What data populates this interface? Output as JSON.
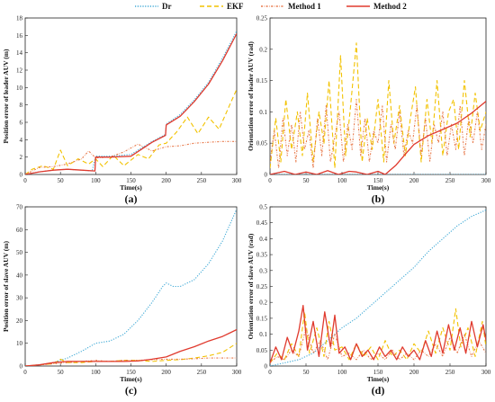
{
  "legend": [
    {
      "name": "Dr",
      "color": "#3fa9d6",
      "dash": "1.2,1.6"
    },
    {
      "name": "EKF",
      "color": "#f2c200",
      "dash": "5,3"
    },
    {
      "name": "Method 1",
      "color": "#e8794a",
      "dash": "2,1.5,0.6,1.5"
    },
    {
      "name": "Method 2",
      "color": "#e03a2e",
      "dash": ""
    }
  ],
  "chart_data": [
    {
      "panel": "(a)",
      "type": "line",
      "xlabel": "Time(s)",
      "ylabel": "Position error of leader AUV (m)",
      "xlim": [
        0,
        300
      ],
      "ylim": [
        0,
        18
      ],
      "xticks": [
        0,
        50,
        100,
        150,
        200,
        250,
        300
      ],
      "yticks": [
        0,
        2,
        4,
        6,
        8,
        10,
        12,
        14,
        16,
        18
      ],
      "grid": false,
      "series": [
        {
          "name": "Dr",
          "x": [
            0,
            20,
            40,
            60,
            80,
            95,
            100,
            120,
            150,
            180,
            199,
            200,
            220,
            240,
            260,
            280,
            300
          ],
          "y": [
            0,
            0.3,
            0.5,
            0.6,
            0.5,
            0.4,
            2.1,
            2.1,
            2.3,
            3.8,
            4.6,
            5.8,
            6.9,
            8.6,
            10.6,
            13.4,
            16.5
          ]
        },
        {
          "name": "EKF",
          "x": [
            0,
            10,
            25,
            40,
            50,
            60,
            75,
            90,
            100,
            110,
            125,
            140,
            160,
            175,
            190,
            200,
            215,
            230,
            245,
            260,
            275,
            290,
            300
          ],
          "y": [
            0,
            0.6,
            1.0,
            0.6,
            2.8,
            1.0,
            1.8,
            1.2,
            1.8,
            0.9,
            2.2,
            1.0,
            2.3,
            1.8,
            3.4,
            3.6,
            4.9,
            6.6,
            4.7,
            6.6,
            5.2,
            8.0,
            9.8
          ]
        },
        {
          "name": "Method 1",
          "x": [
            0,
            20,
            40,
            60,
            80,
            90,
            100,
            120,
            140,
            160,
            180,
            200,
            220,
            240,
            260,
            280,
            300
          ],
          "y": [
            0,
            0.8,
            0.9,
            1.2,
            1.8,
            2.7,
            1.9,
            2.0,
            2.6,
            3.5,
            2.7,
            3.2,
            3.3,
            3.6,
            3.7,
            3.8,
            3.8
          ]
        },
        {
          "name": "Method 2",
          "x": [
            0,
            20,
            40,
            60,
            80,
            99,
            100,
            120,
            150,
            180,
            199,
            200,
            220,
            240,
            260,
            280,
            300
          ],
          "y": [
            0,
            0.3,
            0.5,
            0.6,
            0.5,
            0.4,
            2.0,
            2.0,
            2.1,
            3.7,
            4.5,
            5.7,
            6.7,
            8.4,
            10.4,
            13.1,
            16.2
          ]
        }
      ]
    },
    {
      "panel": "(b)",
      "type": "line",
      "xlabel": "Time(s)",
      "ylabel": "Orientation error of leader AUV (rad)",
      "xlim": [
        0,
        300
      ],
      "ylim": [
        0,
        0.25
      ],
      "xticks": [
        0,
        50,
        100,
        150,
        200,
        250,
        300
      ],
      "yticks": [
        0,
        0.05,
        0.1,
        0.15,
        0.2,
        0.25
      ],
      "grid": false,
      "series": [
        {
          "name": "Dr",
          "x": [
            0,
            300
          ],
          "y": [
            0,
            0
          ]
        },
        {
          "name": "EKF",
          "x": [
            0,
            8,
            15,
            22,
            30,
            38,
            45,
            52,
            60,
            68,
            75,
            82,
            90,
            98,
            105,
            112,
            120,
            128,
            135,
            142,
            150,
            158,
            165,
            172,
            180,
            188,
            195,
            202,
            210,
            218,
            225,
            232,
            240,
            248,
            255,
            262,
            270,
            278,
            285,
            292,
            300
          ],
          "y": [
            0.01,
            0.09,
            0.02,
            0.12,
            0.04,
            0.1,
            0.03,
            0.13,
            0.02,
            0.1,
            0.05,
            0.15,
            0.01,
            0.19,
            0.03,
            0.11,
            0.21,
            0.02,
            0.09,
            0.04,
            0.12,
            0.02,
            0.15,
            0.05,
            0.11,
            0.03,
            0.09,
            0.14,
            0.02,
            0.12,
            0.05,
            0.15,
            0.03,
            0.1,
            0.12,
            0.04,
            0.15,
            0.06,
            0.13,
            0.07,
            0.1
          ]
        },
        {
          "name": "Method 1",
          "x": [
            0,
            6,
            12,
            18,
            24,
            30,
            36,
            42,
            48,
            54,
            60,
            66,
            72,
            78,
            84,
            90,
            96,
            102,
            108,
            114,
            120,
            126,
            132,
            138,
            144,
            150,
            156,
            162,
            168,
            174,
            180,
            186,
            192,
            198,
            204,
            210,
            216,
            222,
            228,
            234,
            240,
            246,
            252,
            258,
            264,
            270,
            276,
            282,
            288,
            294,
            300
          ],
          "y": [
            0.02,
            0.07,
            0.01,
            0.09,
            0.03,
            0.08,
            0.02,
            0.1,
            0.04,
            0.07,
            0.01,
            0.09,
            0.03,
            0.11,
            0.02,
            0.06,
            0.1,
            0.02,
            0.08,
            0.04,
            0.12,
            0.03,
            0.09,
            0.02,
            0.07,
            0.05,
            0.11,
            0.02,
            0.08,
            0.04,
            0.1,
            0.03,
            0.07,
            0.05,
            0.11,
            0.03,
            0.09,
            0.02,
            0.08,
            0.05,
            0.1,
            0.03,
            0.08,
            0.04,
            0.11,
            0.03,
            0.09,
            0.05,
            0.1,
            0.04,
            0.08
          ]
        },
        {
          "name": "Method 2",
          "x": [
            0,
            20,
            35,
            50,
            65,
            80,
            95,
            110,
            120,
            135,
            150,
            160,
            175,
            190,
            200,
            220,
            240,
            260,
            280,
            300
          ],
          "y": [
            0.0,
            0.005,
            0.0,
            0.004,
            0.0,
            0.006,
            0.0,
            0.005,
            0.004,
            0.0,
            0.005,
            0.0,
            0.015,
            0.035,
            0.048,
            0.062,
            0.072,
            0.082,
            0.098,
            0.117
          ]
        }
      ]
    },
    {
      "panel": "(c)",
      "type": "line",
      "xlabel": "Time(s)",
      "ylabel": "Position error of slave AUV (m)",
      "xlim": [
        0,
        300
      ],
      "ylim": [
        0,
        70
      ],
      "xticks": [
        0,
        50,
        100,
        150,
        200,
        250,
        300
      ],
      "yticks": [
        0,
        10,
        20,
        30,
        40,
        50,
        60,
        70
      ],
      "grid": false,
      "series": [
        {
          "name": "Dr",
          "x": [
            0,
            20,
            40,
            60,
            80,
            100,
            120,
            140,
            160,
            180,
            195,
            200,
            210,
            220,
            240,
            260,
            280,
            300
          ],
          "y": [
            0,
            0.5,
            1.5,
            3.5,
            6.5,
            10.0,
            11.0,
            14.0,
            20.0,
            28.0,
            35.0,
            36.5,
            35.0,
            35.0,
            38.0,
            45.0,
            55.0,
            69.0
          ]
        },
        {
          "name": "EKF",
          "x": [
            0,
            20,
            40,
            50,
            60,
            80,
            100,
            120,
            140,
            160,
            180,
            200,
            220,
            240,
            260,
            280,
            300
          ],
          "y": [
            0,
            0.5,
            1.0,
            3.0,
            1.5,
            1.5,
            2.0,
            2.0,
            2.5,
            2.5,
            2.0,
            2.5,
            2.8,
            3.5,
            4.5,
            6.0,
            10.0
          ]
        },
        {
          "name": "Method 1",
          "x": [
            0,
            20,
            40,
            60,
            80,
            100,
            120,
            140,
            160,
            180,
            200,
            220,
            240,
            260,
            280,
            300
          ],
          "y": [
            0,
            0.5,
            1.0,
            1.5,
            2.0,
            2.5,
            2.0,
            2.5,
            2.5,
            2.8,
            3.0,
            3.0,
            3.2,
            3.5,
            3.5,
            3.5
          ]
        },
        {
          "name": "Method 2",
          "x": [
            0,
            20,
            40,
            60,
            80,
            100,
            120,
            140,
            160,
            180,
            200,
            220,
            240,
            260,
            280,
            300
          ],
          "y": [
            0,
            0.5,
            1.5,
            2.0,
            2.0,
            2.0,
            2.0,
            2.0,
            2.2,
            3.0,
            4.0,
            6.5,
            8.5,
            11.0,
            13.0,
            16.0
          ]
        }
      ]
    },
    {
      "panel": "(d)",
      "type": "line",
      "xlabel": "Time(s)",
      "ylabel": "Orientation error of slave AUV (rad)",
      "xlim": [
        0,
        300
      ],
      "ylim": [
        0,
        0.5
      ],
      "xticks": [
        0,
        50,
        100,
        150,
        200,
        250,
        300
      ],
      "yticks": [
        0,
        0.05,
        0.1,
        0.15,
        0.2,
        0.25,
        0.3,
        0.35,
        0.4,
        0.45,
        0.5
      ],
      "grid": false,
      "series": [
        {
          "name": "Dr",
          "x": [
            0,
            20,
            40,
            60,
            80,
            100,
            120,
            140,
            160,
            180,
            200,
            220,
            240,
            260,
            280,
            300
          ],
          "y": [
            0.0,
            0.01,
            0.02,
            0.04,
            0.08,
            0.12,
            0.15,
            0.19,
            0.23,
            0.27,
            0.31,
            0.36,
            0.4,
            0.44,
            0.47,
            0.49
          ]
        },
        {
          "name": "EKF",
          "x": [
            0,
            10,
            20,
            30,
            40,
            48,
            55,
            65,
            75,
            82,
            90,
            100,
            110,
            120,
            130,
            140,
            150,
            160,
            170,
            180,
            190,
            200,
            210,
            220,
            230,
            240,
            250,
            258,
            265,
            275,
            285,
            295,
            300
          ],
          "y": [
            0.01,
            0.04,
            0.02,
            0.07,
            0.03,
            0.17,
            0.04,
            0.12,
            0.03,
            0.14,
            0.05,
            0.06,
            0.02,
            0.07,
            0.03,
            0.06,
            0.02,
            0.08,
            0.03,
            0.05,
            0.02,
            0.07,
            0.04,
            0.11,
            0.04,
            0.12,
            0.05,
            0.18,
            0.06,
            0.12,
            0.03,
            0.14,
            0.06
          ]
        },
        {
          "name": "Method 1",
          "x": [
            0,
            10,
            20,
            30,
            40,
            50,
            60,
            70,
            80,
            90,
            100,
            110,
            120,
            130,
            140,
            150,
            160,
            170,
            180,
            190,
            200,
            210,
            220,
            230,
            240,
            250,
            260,
            270,
            280,
            290,
            300
          ],
          "y": [
            0.01,
            0.03,
            0.02,
            0.05,
            0.03,
            0.12,
            0.04,
            0.08,
            0.02,
            0.1,
            0.03,
            0.04,
            0.02,
            0.05,
            0.02,
            0.04,
            0.02,
            0.05,
            0.02,
            0.04,
            0.02,
            0.05,
            0.03,
            0.07,
            0.03,
            0.09,
            0.04,
            0.1,
            0.03,
            0.08,
            0.04
          ]
        },
        {
          "name": "Method 2",
          "x": [
            0,
            8,
            16,
            24,
            32,
            40,
            46,
            52,
            60,
            68,
            76,
            84,
            90,
            96,
            104,
            112,
            120,
            128,
            136,
            144,
            152,
            160,
            168,
            176,
            184,
            192,
            200,
            208,
            216,
            224,
            232,
            240,
            248,
            256,
            264,
            272,
            280,
            288,
            296,
            300
          ],
          "y": [
            0.01,
            0.06,
            0.02,
            0.09,
            0.04,
            0.11,
            0.19,
            0.05,
            0.14,
            0.03,
            0.17,
            0.06,
            0.16,
            0.04,
            0.06,
            0.02,
            0.07,
            0.03,
            0.05,
            0.02,
            0.06,
            0.03,
            0.05,
            0.02,
            0.06,
            0.03,
            0.05,
            0.02,
            0.08,
            0.03,
            0.11,
            0.04,
            0.13,
            0.05,
            0.12,
            0.04,
            0.14,
            0.06,
            0.13,
            0.08
          ]
        }
      ]
    }
  ]
}
